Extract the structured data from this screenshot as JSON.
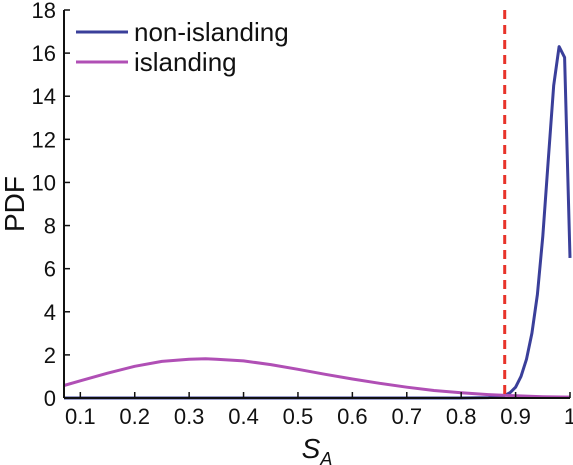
{
  "chart_data": {
    "type": "line",
    "xlabel": {
      "main": "S",
      "sub": "A"
    },
    "ylabel": "PDF",
    "xlim": [
      0.07,
      1.0
    ],
    "ylim": [
      0,
      18
    ],
    "x_ticks": [
      0.1,
      0.2,
      0.3,
      0.4,
      0.5,
      0.6,
      0.7,
      0.8,
      0.9,
      1
    ],
    "x_tick_labels": [
      "0.1",
      "0.2",
      "0.3",
      "0.4",
      "0.5",
      "0.6",
      "0.7",
      "0.8",
      "0.9",
      "1"
    ],
    "y_ticks": [
      0,
      2,
      4,
      6,
      8,
      10,
      12,
      14,
      16,
      18
    ],
    "y_tick_labels": [
      "0",
      "2",
      "4",
      "6",
      "8",
      "10",
      "12",
      "14",
      "16",
      "18"
    ],
    "grid": false,
    "legend_position": "top-left",
    "threshold": {
      "x": 0.88,
      "color": "#e8332a",
      "style": "dashed"
    },
    "series": [
      {
        "name": "non-islanding",
        "color": "#3a3f9a",
        "x": [
          0.07,
          0.8,
          0.85,
          0.87,
          0.88,
          0.89,
          0.9,
          0.91,
          0.92,
          0.93,
          0.94,
          0.95,
          0.96,
          0.97,
          0.98,
          0.99,
          1.0
        ],
        "y": [
          0,
          0,
          0.02,
          0.06,
          0.12,
          0.25,
          0.5,
          1.0,
          1.8,
          3.0,
          4.8,
          7.5,
          11.0,
          14.5,
          16.3,
          15.8,
          6.5
        ]
      },
      {
        "name": "islanding",
        "color": "#b04fb5",
        "x": [
          0.07,
          0.1,
          0.15,
          0.2,
          0.25,
          0.3,
          0.33,
          0.35,
          0.4,
          0.45,
          0.5,
          0.55,
          0.6,
          0.65,
          0.7,
          0.75,
          0.8,
          0.85,
          0.9,
          0.95,
          1.0
        ],
        "y": [
          0.58,
          0.8,
          1.15,
          1.47,
          1.7,
          1.8,
          1.82,
          1.8,
          1.72,
          1.55,
          1.33,
          1.1,
          0.88,
          0.68,
          0.5,
          0.35,
          0.24,
          0.16,
          0.1,
          0.06,
          0.04
        ]
      }
    ]
  }
}
